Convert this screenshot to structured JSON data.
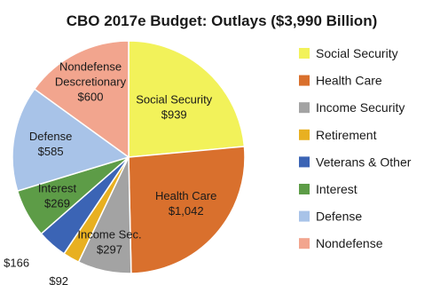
{
  "chart_data": {
    "type": "pie",
    "title": "CBO 2017e Budget: Outlays ($3,990 Billion)",
    "slices": [
      {
        "legend": "Social Security",
        "label_lines": [
          "Social Security",
          "$939"
        ],
        "value": 939,
        "color": "#f2f25a"
      },
      {
        "legend": "Health Care",
        "label_lines": [
          "Health Care",
          "$1,042"
        ],
        "value": 1042,
        "color": "#d9702d"
      },
      {
        "legend": "Income Security",
        "label_lines": [
          "Income Sec.",
          "$297"
        ],
        "value": 297,
        "color": "#a3a3a3"
      },
      {
        "legend": "Retirement",
        "label_lines": [
          "$92"
        ],
        "value": 92,
        "color": "#e8b021"
      },
      {
        "legend": "Veterans & Other",
        "label_lines": [
          "$166"
        ],
        "value": 166,
        "color": "#3b64b5"
      },
      {
        "legend": "Interest",
        "label_lines": [
          "Interest",
          "$269"
        ],
        "value": 269,
        "color": "#5d9c47"
      },
      {
        "legend": "Defense",
        "label_lines": [
          "Defense",
          "$585"
        ],
        "value": 585,
        "color": "#a8c3e8"
      },
      {
        "legend": "Nondefense",
        "label_lines": [
          "Nondefense",
          "Descretionary",
          "$600"
        ],
        "value": 600,
        "color": "#f2a58e"
      }
    ],
    "legend_position": "right"
  }
}
